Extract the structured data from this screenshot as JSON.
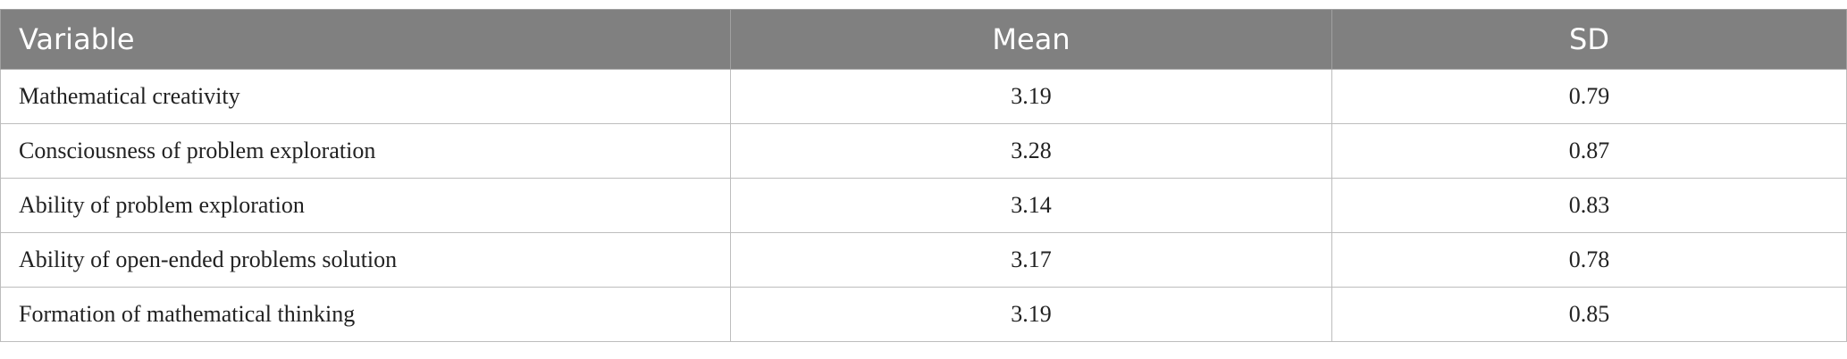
{
  "table": {
    "header": [
      "Variable",
      "Mean",
      "SD"
    ],
    "rows": [
      [
        "Mathematical creativity",
        "3.19",
        "0.79"
      ],
      [
        "Consciousness of problem exploration",
        "3.28",
        "0.87"
      ],
      [
        "Ability of problem exploration",
        "3.14",
        "0.83"
      ],
      [
        "Ability of open-ended problems solution",
        "3.17",
        "0.78"
      ],
      [
        "Formation of mathematical thinking",
        "3.19",
        "0.85"
      ]
    ]
  }
}
